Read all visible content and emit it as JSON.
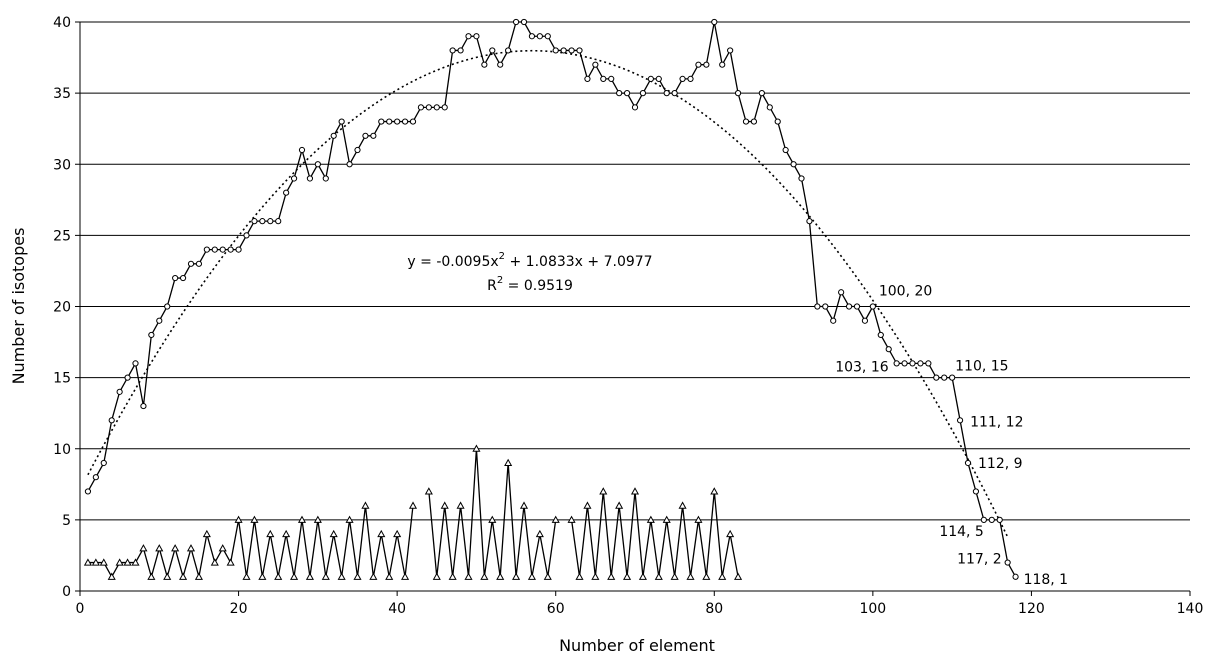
{
  "chart_data": {
    "type": "line",
    "xlabel": "Number of element",
    "ylabel": "Number of isotopes",
    "xlim": [
      0,
      140
    ],
    "ylim": [
      0,
      40
    ],
    "xticks": [
      0,
      20,
      40,
      60,
      80,
      100,
      120,
      140
    ],
    "yticks": [
      0,
      5,
      10,
      15,
      20,
      25,
      30,
      35,
      40
    ],
    "grid": "horizontal",
    "series": [
      {
        "marker": "circle",
        "x": [
          1,
          2,
          3,
          4,
          5,
          6,
          7,
          8,
          9,
          10,
          11,
          12,
          13,
          14,
          15,
          16,
          17,
          18,
          19,
          20,
          21,
          22,
          23,
          24,
          25,
          26,
          27,
          28,
          29,
          30,
          31,
          32,
          33,
          34,
          35,
          36,
          37,
          38,
          39,
          40,
          41,
          42,
          43,
          44,
          45,
          46,
          47,
          48,
          49,
          50,
          51,
          52,
          53,
          54,
          55,
          56,
          57,
          58,
          59,
          60,
          61,
          62,
          63,
          64,
          65,
          66,
          67,
          68,
          69,
          70,
          71,
          72,
          73,
          74,
          75,
          76,
          77,
          78,
          79,
          80,
          81,
          82,
          83,
          84,
          85,
          86,
          87,
          88,
          89,
          90,
          91,
          92,
          93,
          94,
          95,
          96,
          97,
          98,
          99,
          100,
          101,
          102,
          103,
          104,
          105,
          106,
          107,
          108,
          109,
          110,
          111,
          112,
          113,
          114,
          115,
          116,
          117,
          118
        ],
        "y": [
          7,
          8,
          9,
          12,
          14,
          15,
          16,
          13,
          18,
          19,
          20,
          22,
          22,
          23,
          23,
          24,
          24,
          24,
          24,
          24,
          25,
          26,
          26,
          26,
          26,
          28,
          29,
          31,
          29,
          30,
          29,
          32,
          33,
          30,
          31,
          32,
          32,
          33,
          33,
          33,
          33,
          33,
          34,
          34,
          34,
          34,
          38,
          38,
          39,
          39,
          37,
          38,
          37,
          38,
          40,
          40,
          39,
          39,
          39,
          38,
          38,
          38,
          38,
          36,
          37,
          36,
          36,
          35,
          35,
          34,
          35,
          36,
          36,
          35,
          35,
          36,
          36,
          37,
          37,
          40,
          37,
          38,
          35,
          33,
          33,
          35,
          34,
          33,
          31,
          30,
          29,
          26,
          20,
          20,
          19,
          21,
          20,
          20,
          19,
          20,
          18,
          17,
          16,
          16,
          16,
          16,
          16,
          15,
          15,
          15,
          12,
          9,
          7,
          5,
          5,
          5,
          2,
          1
        ]
      },
      {
        "marker": "triangle",
        "x": [
          1,
          2,
          3,
          4,
          5,
          6,
          7,
          8,
          9,
          10,
          11,
          12,
          13,
          14,
          15,
          16,
          17,
          18,
          19,
          20,
          21,
          22,
          23,
          24,
          25,
          26,
          27,
          28,
          29,
          30,
          31,
          32,
          33,
          34,
          35,
          36,
          37,
          38,
          39,
          40,
          41,
          42,
          43,
          44,
          45,
          46,
          47,
          48,
          49,
          50,
          51,
          52,
          53,
          54,
          55,
          56,
          57,
          58,
          59,
          60,
          61,
          62,
          63,
          64,
          65,
          66,
          67,
          68,
          69,
          70,
          71,
          72,
          73,
          74,
          75,
          76,
          77,
          78,
          79,
          80,
          81,
          82,
          83
        ],
        "y": [
          2,
          2,
          2,
          1,
          2,
          2,
          2,
          3,
          1,
          3,
          1,
          3,
          1,
          3,
          1,
          4,
          2,
          3,
          2,
          5,
          1,
          5,
          1,
          4,
          1,
          4,
          1,
          5,
          1,
          5,
          1,
          4,
          1,
          5,
          1,
          6,
          1,
          4,
          1,
          4,
          1,
          6,
          null,
          7,
          1,
          6,
          1,
          6,
          1,
          10,
          1,
          5,
          1,
          9,
          1,
          6,
          1,
          4,
          1,
          5,
          null,
          5,
          1,
          6,
          1,
          7,
          1,
          6,
          1,
          7,
          1,
          5,
          1,
          5,
          1,
          6,
          1,
          5,
          1,
          7,
          1,
          4,
          1
        ]
      }
    ],
    "trendline": {
      "type": "polynomial",
      "order": 2,
      "coefficients": [
        -0.0095,
        1.0833,
        7.0977
      ],
      "x_range": [
        1,
        117
      ]
    },
    "equation": {
      "main": "y = -0.0095x",
      "sup": "2",
      "rest": " + 1.0833x + 7.0977"
    },
    "r_squared": {
      "main": "R",
      "sup": "2",
      "rest": " = 0.9519"
    },
    "annotations": [
      {
        "text": "100, 20",
        "x": 100,
        "y": 20
      },
      {
        "text": "103, 16",
        "x": 103,
        "y": 16
      },
      {
        "text": "110, 15",
        "x": 110,
        "y": 15
      },
      {
        "text": "111, 12",
        "x": 111,
        "y": 12
      },
      {
        "text": "112, 9",
        "x": 112,
        "y": 9
      },
      {
        "text": "114, 5",
        "x": 114,
        "y": 5
      },
      {
        "text": "117, 2",
        "x": 117,
        "y": 2
      },
      {
        "text": "118, 1",
        "x": 118,
        "y": 1
      }
    ],
    "colors": {
      "line": "#000000",
      "grid": "#000000",
      "marker_fill": "#ffffff"
    }
  }
}
